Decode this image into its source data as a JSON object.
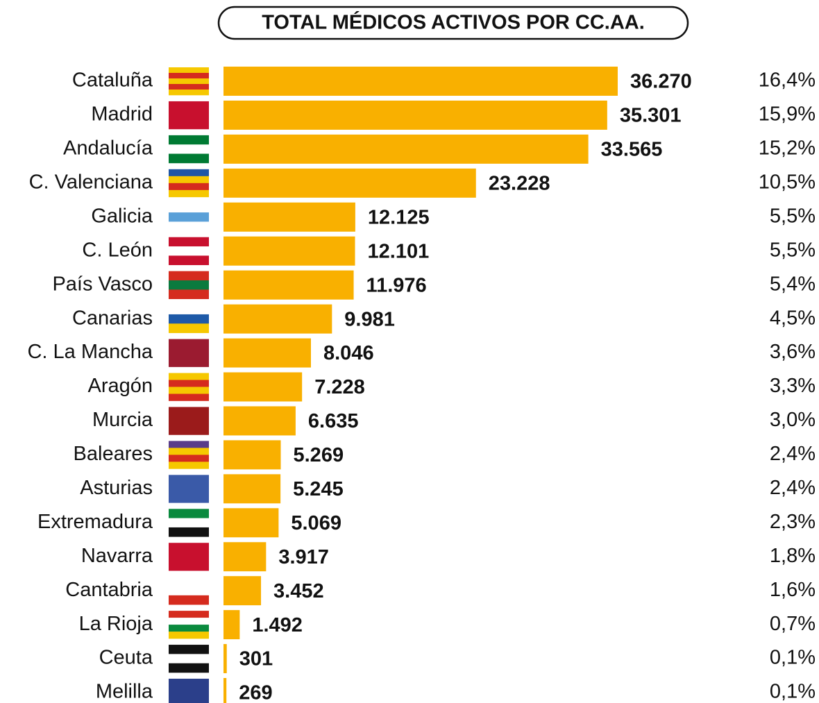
{
  "chart_data": {
    "type": "bar",
    "orientation": "horizontal",
    "title": "TOTAL MÉDICOS ACTIVOS POR CC.AA.",
    "categories": [
      "Cataluña",
      "Madrid",
      "Andalucía",
      "C. Valenciana",
      "Galicia",
      "C. León",
      "País Vasco",
      "Canarias",
      "C. La Mancha",
      "Aragón",
      "Murcia",
      "Baleares",
      "Asturias",
      "Extremadura",
      "Navarra",
      "Cantabria",
      "La Rioja",
      "Ceuta",
      "Melilla"
    ],
    "values": [
      36270,
      35301,
      33565,
      23228,
      12125,
      12101,
      11976,
      9981,
      8046,
      7228,
      6635,
      5269,
      5245,
      5069,
      3917,
      3452,
      1492,
      301,
      269
    ],
    "value_labels": [
      "36.270",
      "35.301",
      "33.565",
      "23.228",
      "12.125",
      "12.101",
      "11.976",
      "9.981",
      "8.046",
      "7.228",
      "6.635",
      "5.269",
      "5.245",
      "5.069",
      "3.917",
      "3.452",
      "1.492",
      "301",
      "269"
    ],
    "shares": [
      16.4,
      15.9,
      15.2,
      10.5,
      5.5,
      5.5,
      5.4,
      4.5,
      3.6,
      3.3,
      3.0,
      2.4,
      2.4,
      2.3,
      1.8,
      1.6,
      0.7,
      0.1,
      0.1
    ],
    "share_labels": [
      "16,4%",
      "15,9%",
      "15,2%",
      "10,5%",
      "5,5%",
      "5,5%",
      "5,4%",
      "4,5%",
      "3,6%",
      "3,3%",
      "3,0%",
      "2,4%",
      "2,4%",
      "2,3%",
      "1,8%",
      "1,6%",
      "0,7%",
      "0,1%",
      "0,1%"
    ],
    "color": "#f9b000"
  }
}
